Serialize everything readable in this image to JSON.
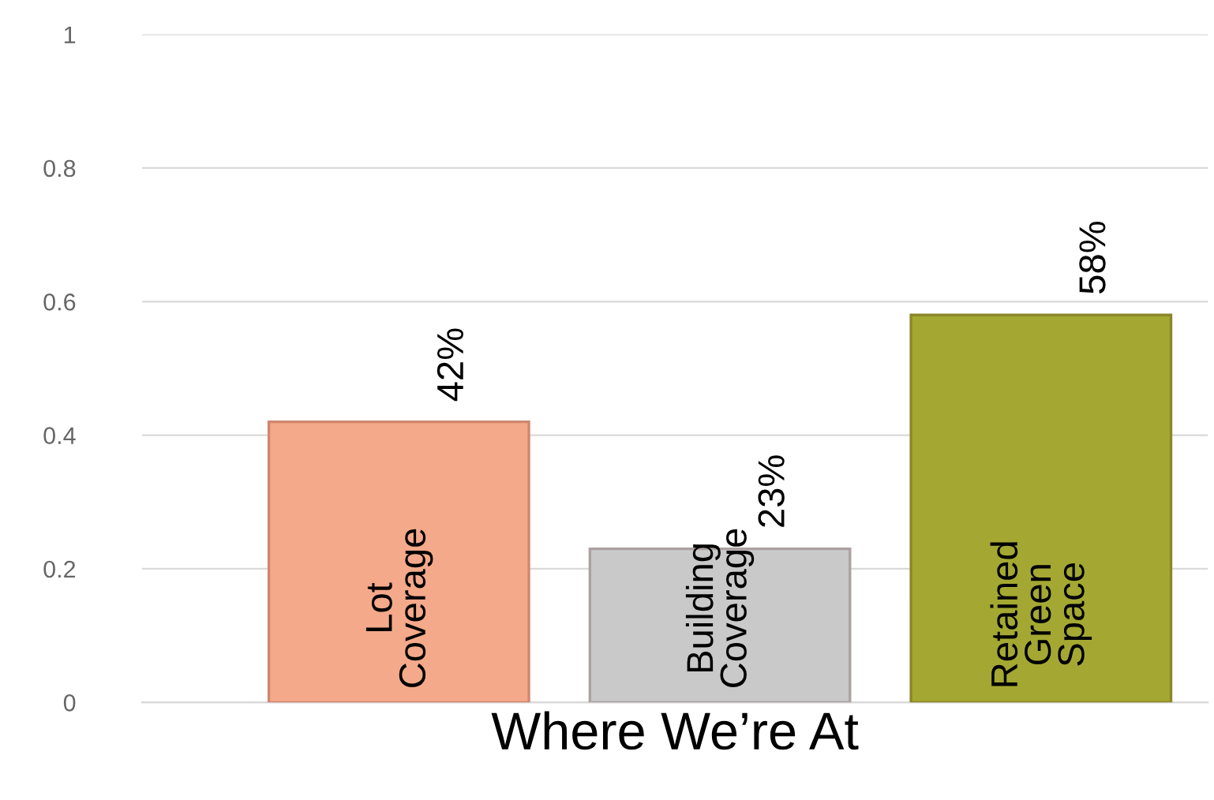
{
  "chart_data": {
    "type": "bar",
    "xlabel": "Where We’re At",
    "categories": [
      "Lot\nCoverage",
      "Building\nCoverage",
      "Retained\nGreen\nSpace"
    ],
    "values": [
      0.42,
      0.23,
      0.58
    ],
    "value_labels": [
      "42%",
      "23%",
      "58%"
    ],
    "colors": [
      "#f4a98a",
      "#c9c9c9",
      "#a4a832"
    ],
    "ylim": [
      0,
      1
    ],
    "yticks": [
      0,
      0.2,
      0.4,
      0.6,
      0.8,
      1
    ],
    "grid": "y",
    "legend": false
  }
}
